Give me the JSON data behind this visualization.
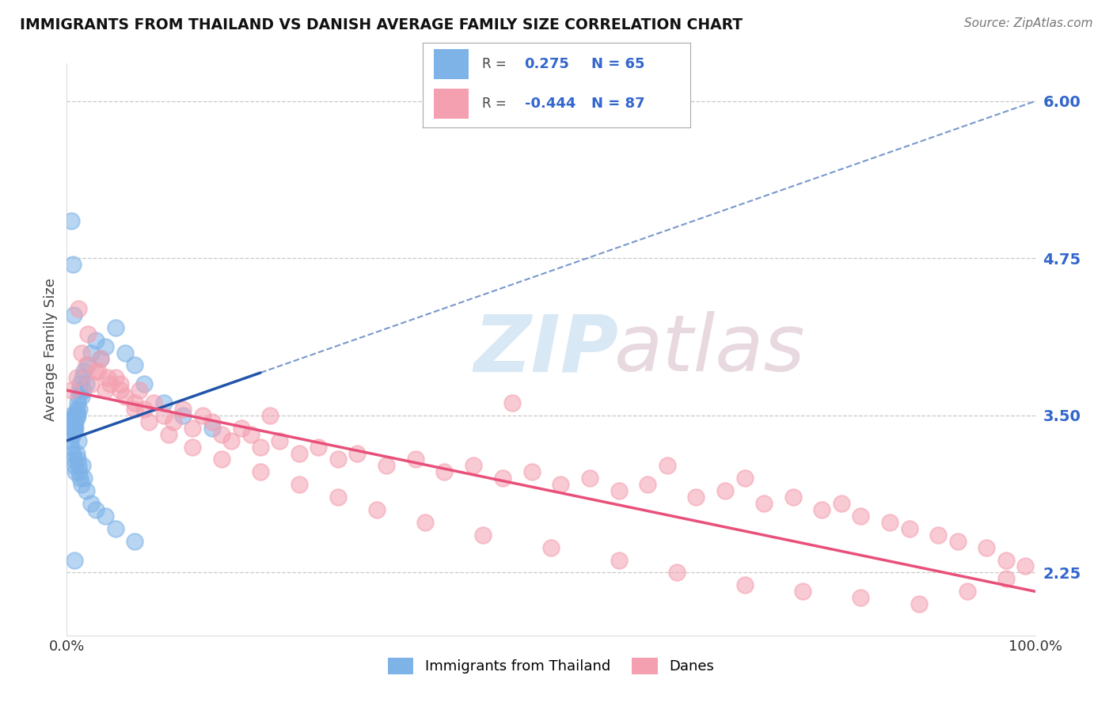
{
  "title": "IMMIGRANTS FROM THAILAND VS DANISH AVERAGE FAMILY SIZE CORRELATION CHART",
  "source": "Source: ZipAtlas.com",
  "ylabel": "Average Family Size",
  "yticks": [
    2.25,
    3.5,
    4.75,
    6.0
  ],
  "xlim": [
    0.0,
    100.0
  ],
  "ylim": [
    1.75,
    6.3
  ],
  "blue_R": 0.275,
  "blue_N": 65,
  "pink_R": -0.444,
  "pink_N": 87,
  "blue_color": "#7EB3E8",
  "pink_color": "#F4A0B0",
  "blue_line_color": "#2255AA",
  "pink_line_color": "#E8507A",
  "blue_line_x0": 0.0,
  "blue_line_y0": 3.3,
  "blue_line_x1": 100.0,
  "blue_line_y1": 6.0,
  "pink_line_x0": 0.0,
  "pink_line_y0": 3.7,
  "pink_line_x1": 100.0,
  "pink_line_y1": 2.1,
  "blue_scatter_x": [
    0.3,
    0.4,
    0.5,
    0.5,
    0.6,
    0.6,
    0.7,
    0.7,
    0.7,
    0.8,
    0.8,
    0.8,
    0.9,
    0.9,
    1.0,
    1.0,
    1.0,
    1.1,
    1.1,
    1.2,
    1.3,
    1.3,
    1.4,
    1.5,
    1.6,
    1.7,
    1.8,
    2.0,
    2.2,
    2.5,
    3.0,
    3.5,
    4.0,
    5.0,
    6.0,
    7.0,
    8.0,
    10.0,
    12.0,
    15.0,
    0.4,
    0.5,
    0.6,
    0.7,
    0.8,
    0.9,
    1.0,
    1.1,
    1.2,
    1.3,
    1.4,
    1.5,
    1.6,
    1.8,
    2.0,
    2.5,
    3.0,
    4.0,
    5.0,
    7.0,
    0.5,
    0.6,
    0.7,
    0.8,
    1.2
  ],
  "blue_scatter_y": [
    3.45,
    3.42,
    3.5,
    3.4,
    3.48,
    3.35,
    3.45,
    3.4,
    3.38,
    3.42,
    3.38,
    3.5,
    3.4,
    3.45,
    3.55,
    3.48,
    3.52,
    3.6,
    3.5,
    3.65,
    3.7,
    3.55,
    3.75,
    3.65,
    3.8,
    3.7,
    3.85,
    3.75,
    3.9,
    4.0,
    4.1,
    3.95,
    4.05,
    4.2,
    4.0,
    3.9,
    3.75,
    3.6,
    3.5,
    3.4,
    3.3,
    3.25,
    3.2,
    3.15,
    3.1,
    3.05,
    3.2,
    3.15,
    3.1,
    3.05,
    3.0,
    2.95,
    3.1,
    3.0,
    2.9,
    2.8,
    2.75,
    2.7,
    2.6,
    2.5,
    5.05,
    4.7,
    4.3,
    2.35,
    3.3
  ],
  "pink_scatter_x": [
    0.5,
    1.0,
    1.5,
    2.0,
    2.5,
    3.0,
    3.5,
    4.0,
    4.5,
    5.0,
    5.5,
    6.0,
    7.0,
    7.5,
    8.0,
    9.0,
    10.0,
    11.0,
    12.0,
    13.0,
    14.0,
    15.0,
    16.0,
    17.0,
    18.0,
    19.0,
    20.0,
    22.0,
    24.0,
    26.0,
    28.0,
    30.0,
    33.0,
    36.0,
    39.0,
    42.0,
    45.0,
    48.0,
    51.0,
    54.0,
    57.0,
    60.0,
    62.0,
    65.0,
    68.0,
    70.0,
    72.0,
    75.0,
    78.0,
    80.0,
    82.0,
    85.0,
    87.0,
    90.0,
    92.0,
    95.0,
    97.0,
    99.0,
    1.2,
    2.2,
    3.2,
    4.2,
    5.5,
    7.0,
    8.5,
    10.5,
    13.0,
    16.0,
    20.0,
    24.0,
    28.0,
    32.0,
    37.0,
    43.0,
    50.0,
    57.0,
    63.0,
    70.0,
    76.0,
    82.0,
    88.0,
    93.0,
    97.0,
    21.0,
    46.0
  ],
  "pink_scatter_y": [
    3.7,
    3.8,
    4.0,
    3.9,
    3.75,
    3.85,
    3.95,
    3.7,
    3.75,
    3.8,
    3.7,
    3.65,
    3.6,
    3.7,
    3.55,
    3.6,
    3.5,
    3.45,
    3.55,
    3.4,
    3.5,
    3.45,
    3.35,
    3.3,
    3.4,
    3.35,
    3.25,
    3.3,
    3.2,
    3.25,
    3.15,
    3.2,
    3.1,
    3.15,
    3.05,
    3.1,
    3.0,
    3.05,
    2.95,
    3.0,
    2.9,
    2.95,
    3.1,
    2.85,
    2.9,
    3.0,
    2.8,
    2.85,
    2.75,
    2.8,
    2.7,
    2.65,
    2.6,
    2.55,
    2.5,
    2.45,
    2.35,
    2.3,
    4.35,
    4.15,
    3.85,
    3.8,
    3.75,
    3.55,
    3.45,
    3.35,
    3.25,
    3.15,
    3.05,
    2.95,
    2.85,
    2.75,
    2.65,
    2.55,
    2.45,
    2.35,
    2.25,
    2.15,
    2.1,
    2.05,
    2.0,
    2.1,
    2.2,
    3.5,
    3.6
  ]
}
